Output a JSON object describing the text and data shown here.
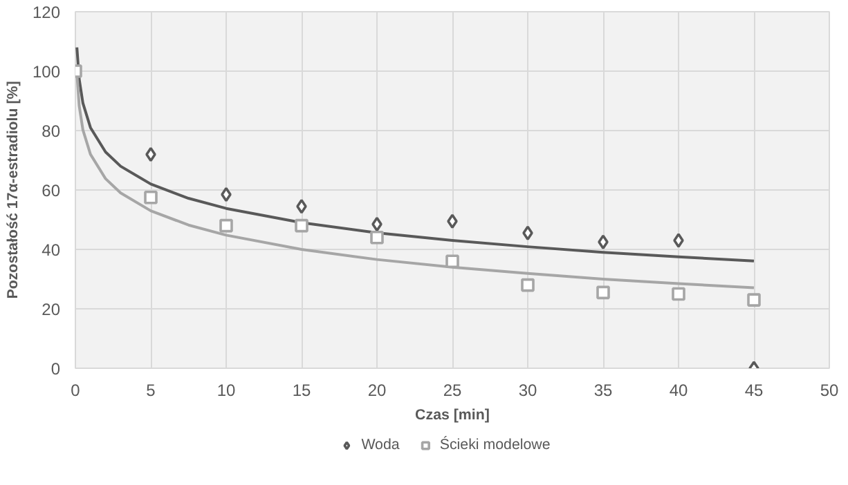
{
  "chart_data": {
    "type": "scatter",
    "xlabel": "Czas [min]",
    "ylabel": "Pozostałość 17α-estradiolu [%]",
    "xlim": [
      0,
      50
    ],
    "ylim": [
      0,
      120
    ],
    "xticks": [
      0,
      5,
      10,
      15,
      20,
      25,
      30,
      35,
      40,
      45,
      50
    ],
    "yticks": [
      0,
      20,
      40,
      60,
      80,
      100,
      120
    ],
    "grid": true,
    "legend": "bottom",
    "series": [
      {
        "name": "Woda",
        "color": "#595959",
        "marker": "diamond",
        "x": [
          5,
          10,
          15,
          20,
          25,
          30,
          35,
          40,
          45
        ],
        "values": [
          72,
          58.5,
          54.5,
          48.5,
          49.5,
          45.5,
          42.5,
          43,
          0
        ]
      },
      {
        "name": "Ścieki modelowe",
        "color": "#a6a6a6",
        "marker": "square",
        "x": [
          0,
          5,
          10,
          15,
          20,
          25,
          30,
          35,
          40,
          45
        ],
        "values": [
          100,
          57.5,
          48,
          48,
          44,
          36,
          28,
          25.5,
          25,
          23
        ]
      },
      {
        "type": "line",
        "color": "#595959",
        "x": [
          0.1,
          0.25,
          0.5,
          1,
          2,
          3,
          5,
          7.5,
          10,
          15,
          20,
          25,
          30,
          35,
          40,
          45
        ],
        "values": [
          108,
          97.4,
          89.2,
          81,
          72.8,
          68,
          62,
          57.2,
          53.8,
          49,
          45.6,
          43,
          40.9,
          39,
          37.5,
          36.1
        ]
      },
      {
        "type": "line",
        "color": "#a6a6a6",
        "x": [
          0.1,
          0.25,
          0.5,
          1,
          2,
          3,
          5,
          7.5,
          10,
          15,
          20,
          25,
          30,
          35,
          40,
          45
        ],
        "values": [
          99.2,
          88.4,
          80.2,
          72,
          63.8,
          59,
          53,
          48.2,
          44.8,
          40,
          36.6,
          34,
          31.9,
          30,
          28.5,
          27.1
        ]
      }
    ]
  }
}
